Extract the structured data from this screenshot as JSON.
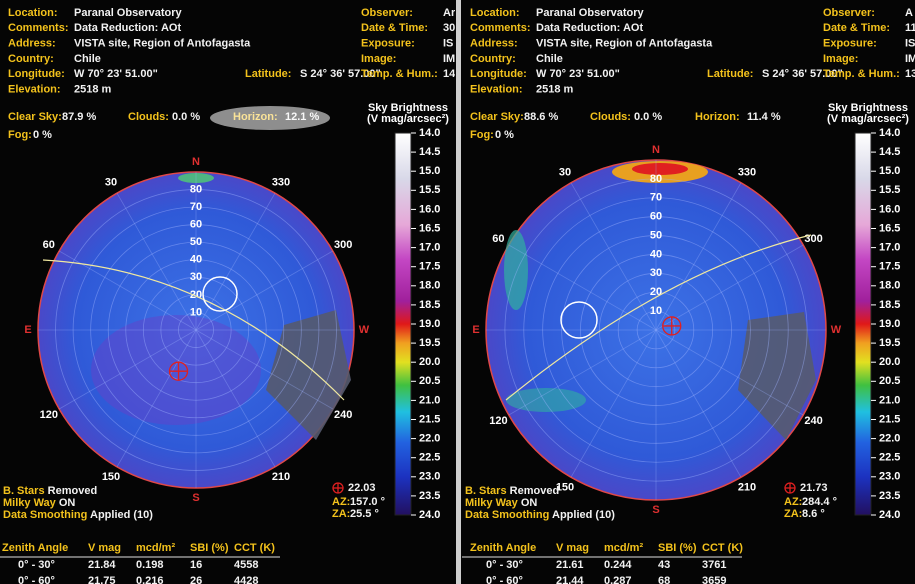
{
  "panels": [
    {
      "info_left": [
        {
          "label": "Location:",
          "value": "Paranal Observatory"
        },
        {
          "label": "Comments:",
          "value": "Data Reduction: AOt"
        },
        {
          "label": "Address:",
          "value": "VISTA site, Region of Antofagasta"
        },
        {
          "label": "Country:",
          "value": "Chile"
        },
        {
          "label": "Longitude:",
          "value": "W 70° 23' 51.00\""
        },
        {
          "label": "Elevation:",
          "value": "2518 m"
        }
      ],
      "latitude": {
        "label": "Latitude:",
        "value": "S 24° 36' 57.00\""
      },
      "info_right": [
        {
          "label": "Observer:",
          "value": "Ar"
        },
        {
          "label": "Date & Time:",
          "value": "30"
        },
        {
          "label": "Exposure:",
          "value": "IS"
        },
        {
          "label": "Image:",
          "value": "IM"
        },
        {
          "label": "Temp. & Hum.:",
          "value": "14"
        }
      ],
      "conditions": [
        {
          "label": "Clear Sky:",
          "value": "87.9 %"
        },
        {
          "label": "Clouds:",
          "value": "0.0 %"
        },
        {
          "label": "Horizon:",
          "value": "12.1 %"
        },
        {
          "label": "Fog:",
          "value": "0 %"
        }
      ],
      "scale_title": [
        "Sky Brightness",
        "(V mag/arcsec²)"
      ],
      "scale_ticks": [
        "14.0",
        "14.5",
        "15.0",
        "15.5",
        "16.0",
        "16.5",
        "17.0",
        "17.5",
        "18.0",
        "18.5",
        "19.0",
        "19.5",
        "20.0",
        "20.5",
        "21.0",
        "21.5",
        "22.0",
        "22.5",
        "23.0",
        "23.5",
        "24.0"
      ],
      "compass": [
        "N",
        "E",
        "S",
        "W"
      ],
      "azimuths": [
        "30",
        "60",
        "120",
        "150",
        "210",
        "240",
        "300",
        "330"
      ],
      "zenith_rings": [
        "10",
        "20",
        "30",
        "40",
        "50",
        "60",
        "70",
        "80"
      ],
      "target": {
        "value": "22.03",
        "az_label": "AZ:",
        "az": "157.0 °",
        "za_label": "ZA:",
        "za": "25.5 °"
      },
      "notes": [
        {
          "label": "B. Stars",
          "value": "Removed"
        },
        {
          "label": "Milky Way",
          "value": "ON"
        },
        {
          "label": "Data Smoothing",
          "value": "Applied (10)"
        }
      ],
      "table": {
        "header": [
          "Zenith Angle",
          "V mag",
          "mcd/m²",
          "SBI (%)",
          "CCT (K)"
        ],
        "rows": [
          [
            "0° - 30°",
            "21.84",
            "0.198",
            "16",
            "4558"
          ],
          [
            "0° - 60°",
            "21.75",
            "0.216",
            "26",
            "4428"
          ]
        ]
      }
    },
    {
      "info_left": [
        {
          "label": "Location:",
          "value": "Paranal Observatory"
        },
        {
          "label": "Comments:",
          "value": "Data Reduction: AOt"
        },
        {
          "label": "Address:",
          "value": "VISTA site, Region of Antofagasta"
        },
        {
          "label": "Country:",
          "value": "Chile"
        },
        {
          "label": "Longitude:",
          "value": "W 70° 23' 51.00\""
        },
        {
          "label": "Elevation:",
          "value": "2518 m"
        }
      ],
      "latitude": {
        "label": "Latitude:",
        "value": "S 24° 36' 57.00\""
      },
      "info_right": [
        {
          "label": "Observer:",
          "value": "A"
        },
        {
          "label": "Date & Time:",
          "value": "11"
        },
        {
          "label": "Exposure:",
          "value": "IS"
        },
        {
          "label": "Image:",
          "value": "IM"
        },
        {
          "label": "Temp. & Hum.:",
          "value": "13"
        }
      ],
      "conditions": [
        {
          "label": "Clear Sky:",
          "value": "88.6 %"
        },
        {
          "label": "Clouds:",
          "value": "0.0 %"
        },
        {
          "label": "Horizon:",
          "value": "11.4 %"
        },
        {
          "label": "Fog:",
          "value": "0 %"
        }
      ],
      "scale_title": [
        "Sky Brightness",
        "(V mag/arcsec²)"
      ],
      "scale_ticks": [
        "14.0",
        "14.5",
        "15.0",
        "15.5",
        "16.0",
        "16.5",
        "17.0",
        "17.5",
        "18.0",
        "18.5",
        "19.0",
        "19.5",
        "20.0",
        "20.5",
        "21.0",
        "21.5",
        "22.0",
        "22.5",
        "23.0",
        "23.5",
        "24.0"
      ],
      "compass": [
        "N",
        "E",
        "S",
        "W"
      ],
      "azimuths": [
        "30",
        "60",
        "120",
        "150",
        "210",
        "240",
        "300",
        "330"
      ],
      "zenith_rings": [
        "10",
        "20",
        "30",
        "40",
        "50",
        "60",
        "70",
        "80"
      ],
      "target": {
        "value": "21.73",
        "az_label": "AZ:",
        "az": "284.4 °",
        "za_label": "ZA:",
        "za": "8.6 °"
      },
      "notes": [
        {
          "label": "B. Stars",
          "value": "Removed"
        },
        {
          "label": "Milky Way",
          "value": "ON"
        },
        {
          "label": "Data Smoothing",
          "value": "Applied (10)"
        }
      ],
      "table": {
        "header": [
          "Zenith Angle",
          "V mag",
          "mcd/m²",
          "SBI (%)",
          "CCT (K)"
        ],
        "rows": [
          [
            "0° - 30°",
            "21.61",
            "0.244",
            "43",
            "3761"
          ],
          [
            "0° - 60°",
            "21.44",
            "0.287",
            "68",
            "3659"
          ]
        ]
      }
    }
  ]
}
